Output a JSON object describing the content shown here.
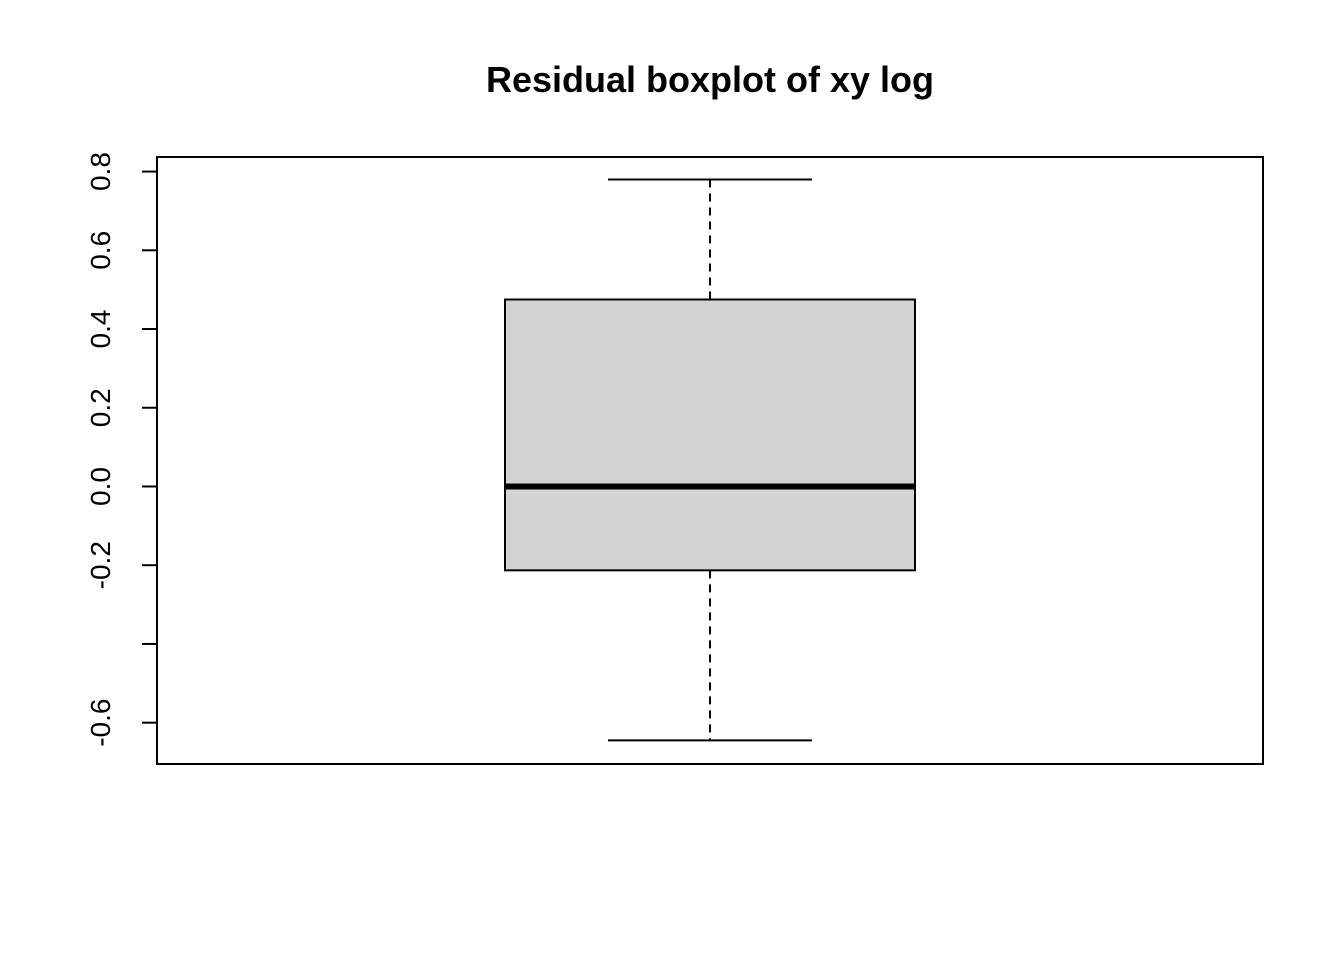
{
  "chart_data": {
    "type": "boxplot",
    "title": "Residual boxplot of xy log",
    "xlabel": "",
    "ylabel": "",
    "ylim": [
      -0.705,
      0.837
    ],
    "y_ticks": [
      -0.6,
      -0.4,
      -0.2,
      0.0,
      0.2,
      0.4,
      0.6,
      0.8
    ],
    "y_tick_labels": [
      "-0.6",
      "",
      "-0.2",
      "0.0",
      "0.2",
      "0.4",
      "0.6",
      "0.8"
    ],
    "grid": false,
    "box": {
      "whisker_low": -0.645,
      "q1": -0.213,
      "median": 0.0,
      "q3": 0.475,
      "whisker_high": 0.78
    },
    "colors": {
      "box_fill": "#d3d3d3",
      "line": "#000000"
    }
  }
}
